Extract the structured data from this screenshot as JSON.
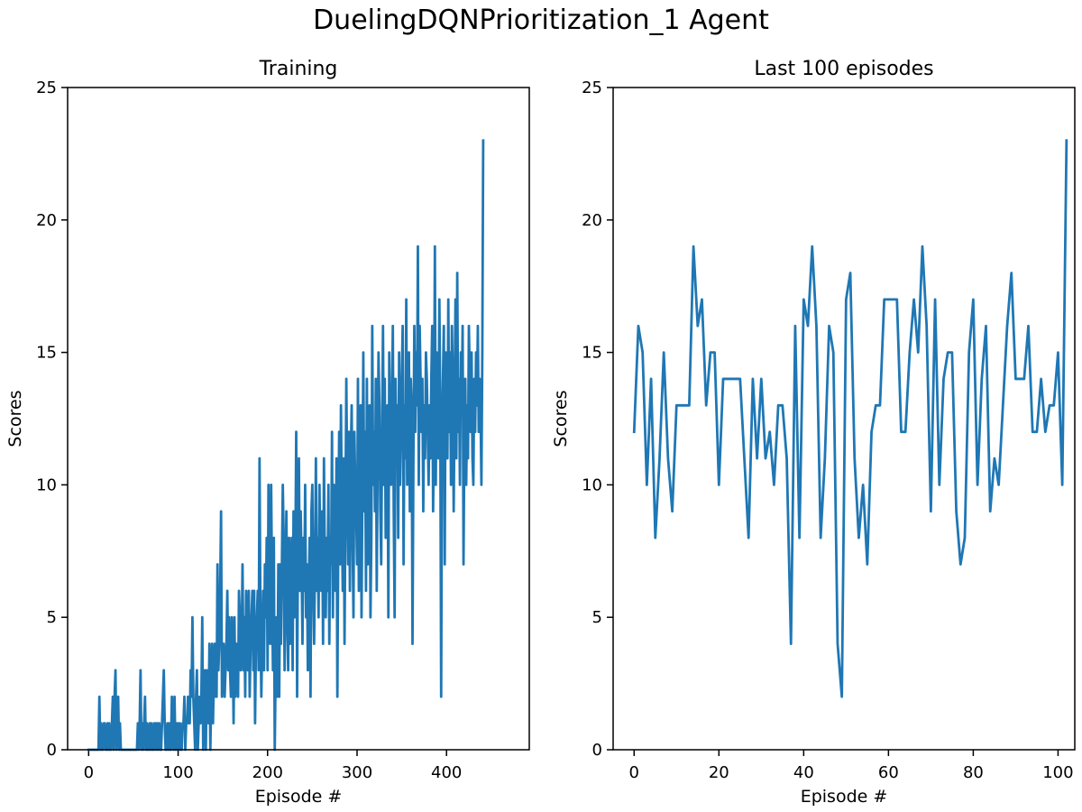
{
  "figure": {
    "title": "DuelingDQNPrioritization_1 Agent",
    "line_color": "#1f77b4"
  },
  "chart_data": [
    {
      "type": "line",
      "title": "Training",
      "xlabel": "Episode #",
      "ylabel": "Scores",
      "xlim": [
        -23.5,
        492.5
      ],
      "ylim": [
        0,
        25
      ],
      "xticks": [
        0,
        100,
        200,
        300,
        400
      ],
      "yticks": [
        0,
        5,
        10,
        15,
        20,
        25
      ],
      "grid": false,
      "series": [
        {
          "values": [
            0,
            0,
            0,
            0,
            0,
            0,
            0,
            0,
            0,
            0,
            0,
            0,
            2,
            0,
            1,
            0,
            0,
            1,
            1,
            0,
            0,
            1,
            0,
            1,
            0,
            0,
            1,
            2,
            0,
            2,
            3,
            0,
            1,
            2,
            0,
            1,
            0,
            0,
            0,
            0,
            0,
            0,
            0,
            0,
            0,
            0,
            0,
            0,
            0,
            0,
            0,
            0,
            0,
            0,
            0,
            1,
            0,
            1,
            3,
            0,
            1,
            0,
            1,
            2,
            0,
            1,
            0,
            0,
            1,
            0,
            1,
            0,
            0,
            1,
            0,
            1,
            0,
            1,
            0,
            1,
            0,
            0,
            1,
            2,
            3,
            1,
            0,
            0,
            1,
            0,
            1,
            0,
            0,
            2,
            1,
            0,
            2,
            0,
            1,
            0,
            1,
            0,
            1,
            0,
            0,
            1,
            1,
            2,
            0,
            1,
            1,
            2,
            1,
            1,
            3,
            2,
            5,
            2,
            1,
            0,
            2,
            3,
            0,
            1,
            2,
            1,
            2,
            5,
            0,
            2,
            3,
            0,
            3,
            2,
            1,
            4,
            0,
            2,
            4,
            1,
            3,
            4,
            2,
            2,
            7,
            3,
            4,
            6,
            9,
            2,
            3,
            4,
            2,
            3,
            4,
            6,
            3,
            5,
            3,
            2,
            5,
            4,
            1,
            5,
            2,
            4,
            3,
            2,
            6,
            5,
            3,
            4,
            7,
            3,
            5,
            2,
            6,
            4,
            3,
            6,
            2,
            4,
            5,
            6,
            3,
            6,
            1,
            4,
            5,
            6,
            3,
            11,
            5,
            2,
            4,
            6,
            3,
            7,
            5,
            8,
            3,
            10,
            5,
            4,
            10,
            6,
            3,
            8,
            0,
            3,
            5,
            2,
            7,
            2,
            7,
            4,
            7,
            10,
            8,
            3,
            6,
            9,
            5,
            3,
            8,
            4,
            6,
            8,
            3,
            9,
            5,
            7,
            12,
            2,
            8,
            11,
            6,
            9,
            7,
            4,
            8,
            6,
            10,
            5,
            7,
            3,
            6,
            8,
            2,
            9,
            10,
            6,
            4,
            7,
            11,
            6,
            8,
            5,
            10,
            7,
            6,
            9,
            4,
            11,
            7,
            5,
            8,
            6,
            10,
            4,
            8,
            7,
            12,
            5,
            10,
            9,
            6,
            11,
            2,
            8,
            12,
            7,
            13,
            9,
            6,
            11,
            4,
            9,
            14,
            10,
            7,
            12,
            6,
            11,
            13,
            8,
            5,
            12,
            10,
            9,
            7,
            14,
            6,
            11,
            13,
            5,
            10,
            15,
            9,
            12,
            6,
            14,
            7,
            11,
            13,
            5,
            8,
            16,
            10,
            12,
            9,
            14,
            6,
            11,
            15,
            13,
            9,
            7,
            12,
            16,
            10,
            14,
            8,
            11,
            13,
            5,
            15,
            12,
            10,
            13,
            16,
            9,
            5,
            14,
            11,
            13,
            8,
            15,
            10,
            12,
            14,
            16,
            7,
            13,
            11,
            17,
            10,
            12,
            15,
            9,
            14,
            13,
            4,
            11,
            16,
            12,
            15,
            13,
            19,
            10,
            16,
            14,
            12,
            14,
            9,
            13,
            11,
            15,
            14,
            12,
            10,
            13,
            11,
            14,
            16,
            9,
            12,
            19,
            10,
            15,
            14,
            11,
            17,
            13,
            2,
            12,
            14,
            16,
            7,
            15,
            13,
            11,
            17,
            12,
            15,
            10,
            16,
            14,
            9,
            13,
            17,
            11,
            18,
            12,
            14,
            10,
            15,
            13,
            16,
            7,
            12,
            14,
            10,
            13,
            11,
            16,
            14,
            12,
            15,
            11,
            10,
            14,
            12,
            15,
            13,
            16,
            12,
            14,
            13,
            10,
            15,
            23
          ]
        }
      ]
    },
    {
      "type": "line",
      "title": "Last 100 episodes",
      "xlabel": "Episode #",
      "ylabel": "Scores",
      "xlim": [
        -4.95,
        103.95
      ],
      "ylim": [
        0,
        25
      ],
      "xticks": [
        0,
        20,
        40,
        60,
        80,
        100
      ],
      "yticks": [
        0,
        5,
        10,
        15,
        20,
        25
      ],
      "grid": false,
      "series": [
        {
          "values": [
            12,
            16,
            15,
            10,
            14,
            8,
            11,
            15,
            11,
            9,
            13,
            13,
            13,
            13,
            19,
            16,
            17,
            13,
            15,
            15,
            10,
            14,
            14,
            14,
            14,
            14,
            11,
            8,
            14,
            11,
            14,
            11,
            12,
            10,
            13,
            13,
            11,
            4,
            16,
            8,
            17,
            16,
            19,
            16,
            8,
            11,
            16,
            15,
            4,
            2,
            17,
            18,
            11,
            8,
            10,
            7,
            12,
            13,
            13,
            17,
            17,
            17,
            17,
            12,
            12,
            15,
            17,
            15,
            19,
            16,
            9,
            17,
            10,
            14,
            15,
            15,
            9,
            7,
            8,
            15,
            17,
            10,
            14,
            16,
            9,
            11,
            10,
            13,
            16,
            18,
            14,
            14,
            14,
            16,
            12,
            12,
            14,
            12,
            13,
            13,
            15,
            10,
            23
          ]
        }
      ]
    }
  ]
}
